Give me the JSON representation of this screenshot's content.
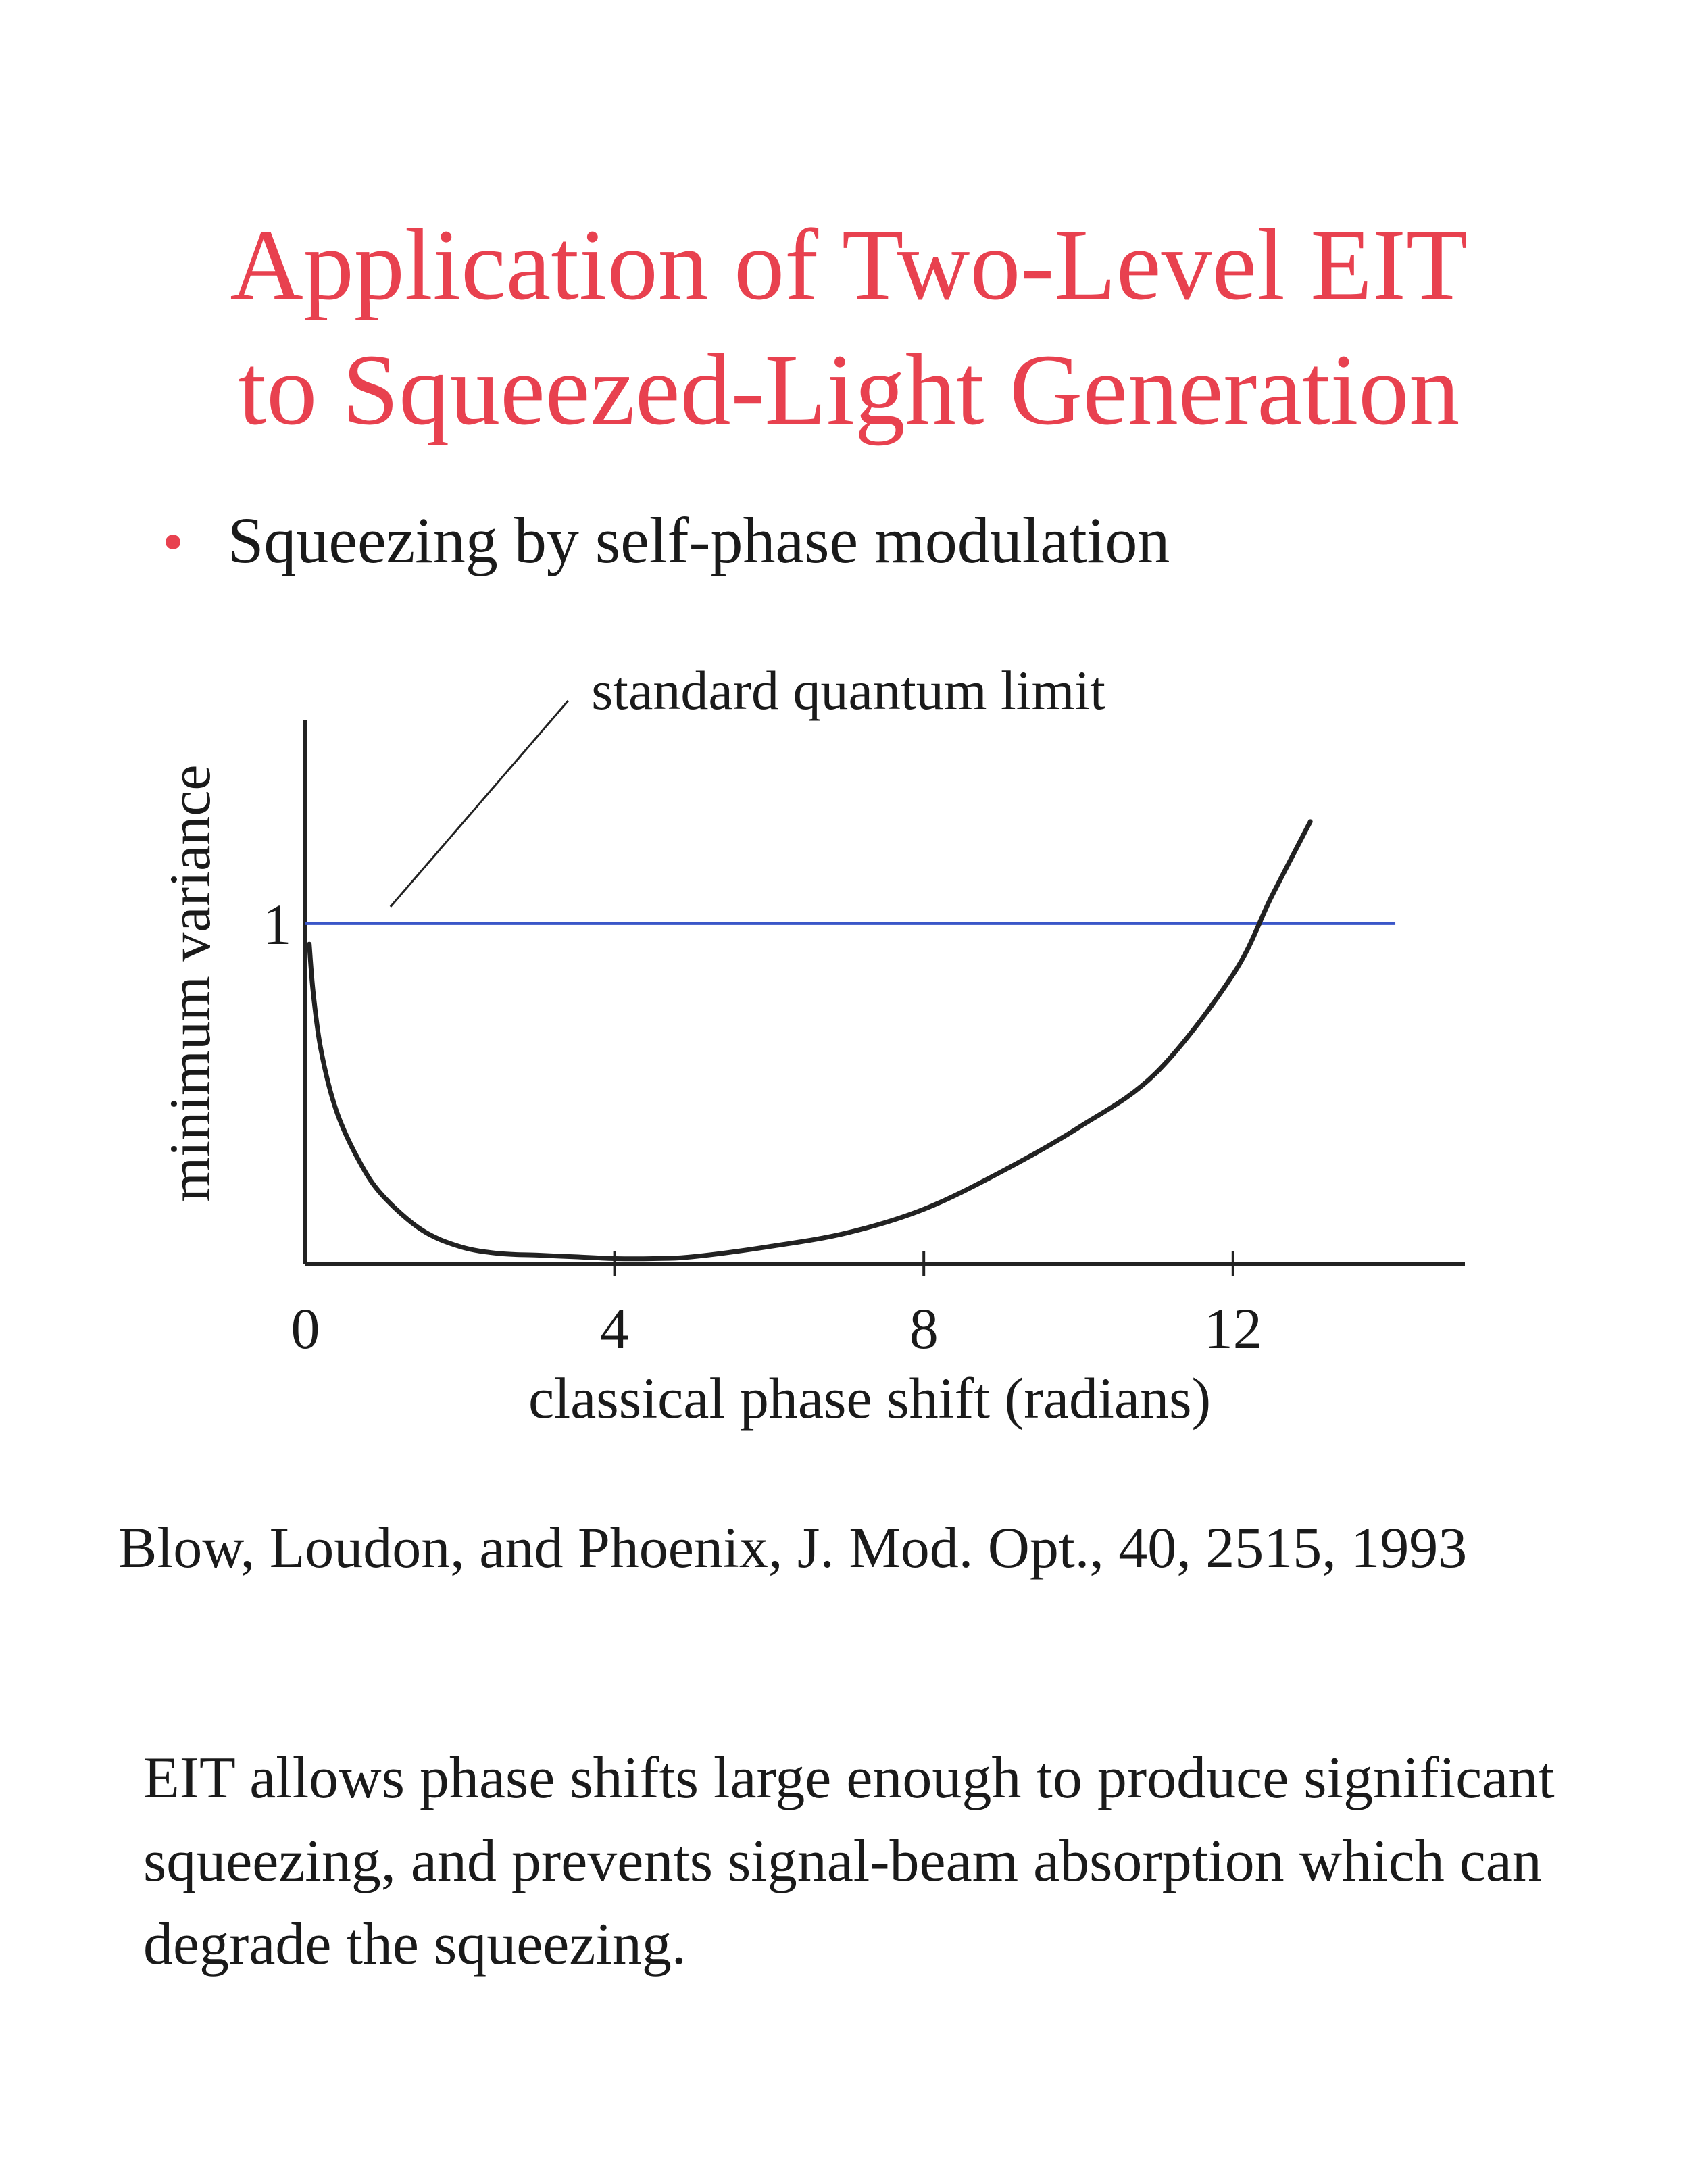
{
  "title": {
    "line1": "Application of Two-Level EIT",
    "line2": "to Squeezed-Light Generation"
  },
  "bullet": {
    "text": "Squeezing by self-phase modulation",
    "color": "#e8414f"
  },
  "chart_data": {
    "type": "line",
    "title": "",
    "xlabel": "classical phase shift (radians)",
    "ylabel": "minimum variance",
    "x_ticks": [
      "0",
      "4",
      "8",
      "12"
    ],
    "y_ticks": [
      "1"
    ],
    "xlim": [
      0,
      15
    ],
    "ylim": [
      0,
      1.6
    ],
    "annotation": "standard quantum limit",
    "series": [
      {
        "color": "#222222",
        "x": [
          0.05,
          0.1,
          0.2,
          0.4,
          0.7,
          1.0,
          1.5,
          2.0,
          2.5,
          3.0,
          3.5,
          4.0,
          4.5,
          5.0,
          6.0,
          7.0,
          8.0,
          9.0,
          10.0,
          11.0,
          12.0,
          12.5,
          13.0
        ],
        "y": [
          0.94,
          0.8,
          0.63,
          0.45,
          0.3,
          0.2,
          0.1,
          0.05,
          0.03,
          0.025,
          0.02,
          0.015,
          0.015,
          0.02,
          0.05,
          0.09,
          0.16,
          0.27,
          0.4,
          0.56,
          0.85,
          1.08,
          1.3
        ]
      }
    ],
    "reference_line": {
      "label": "standard quantum limit",
      "y": 1,
      "color": "#3a56c8"
    }
  },
  "citation": "Blow, Loudon, and Phoenix, J. Mod. Opt., 40, 2515, 1993",
  "conclusion": "EIT allows phase shifts large enough to produce significant squeezing, and prevents signal-beam absorption which can degrade the squeezing."
}
